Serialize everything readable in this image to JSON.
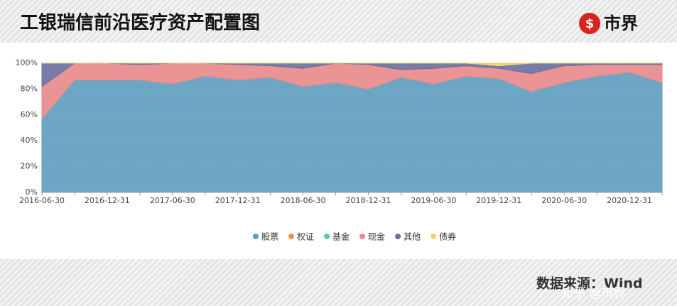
{
  "header": {
    "logo": "市界"
  },
  "chart_data": {
    "type": "stacked_area",
    "title": "工银瑞信前沿医疗资产配置图",
    "categories": [
      "2016-06-30",
      null,
      "2016-12-31",
      null,
      "2017-06-30",
      null,
      "2017-12-31",
      null,
      "2018-06-30",
      null,
      "2018-12-31",
      null,
      "2019-06-30",
      null,
      "2019-12-31",
      null,
      "2020-06-30",
      null,
      "2020-12-31",
      null
    ],
    "series": [
      {
        "name": "股票",
        "color": "#5d9cbf",
        "values": [
          57,
          87,
          87,
          87,
          84,
          90,
          87,
          89,
          82,
          85,
          80,
          89,
          84,
          90,
          88,
          78,
          85,
          90,
          93,
          85
        ]
      },
      {
        "name": "权证",
        "color": "#f0923a",
        "values": [
          0,
          0,
          0,
          0,
          0,
          0,
          0,
          0,
          0,
          0,
          0,
          0,
          0,
          0,
          0,
          0,
          0,
          0,
          0,
          0
        ]
      },
      {
        "name": "基金",
        "color": "#5fc7b8",
        "values": [
          0,
          0,
          0,
          0,
          0,
          0,
          0,
          0,
          0,
          0,
          0,
          0,
          0,
          0,
          0,
          0,
          0,
          0,
          0,
          0
        ]
      },
      {
        "name": "现金",
        "color": "#e8888a",
        "values": [
          25,
          13,
          13,
          12,
          16,
          10,
          12,
          9,
          14,
          15,
          19,
          6,
          12,
          8,
          8,
          14,
          13,
          9,
          6,
          14
        ]
      },
      {
        "name": "其他",
        "color": "#6a6e9c",
        "values": [
          18,
          0,
          0,
          1,
          0,
          0,
          1,
          2,
          4,
          0,
          1,
          5,
          4,
          2,
          2,
          8,
          2,
          1,
          1,
          1
        ]
      },
      {
        "name": "债券",
        "color": "#f0d46a",
        "values": [
          0,
          0,
          0,
          0,
          0,
          0,
          0,
          0,
          0,
          0,
          0,
          0,
          0,
          0,
          2,
          0,
          0,
          0,
          0,
          0
        ]
      }
    ],
    "ylim": [
      0,
      100
    ],
    "yticks": [
      {
        "value": 0,
        "label": "0%"
      },
      {
        "value": 20,
        "label": "20%"
      },
      {
        "value": 40,
        "label": "40%"
      },
      {
        "value": 60,
        "label": "60%"
      },
      {
        "value": 80,
        "label": "80%"
      },
      {
        "value": 100,
        "label": "100%"
      }
    ],
    "grid": true,
    "legend": "bottom"
  },
  "footer": {
    "source": "数据来源：Wind",
    "watermark": "知乎 @市界"
  }
}
